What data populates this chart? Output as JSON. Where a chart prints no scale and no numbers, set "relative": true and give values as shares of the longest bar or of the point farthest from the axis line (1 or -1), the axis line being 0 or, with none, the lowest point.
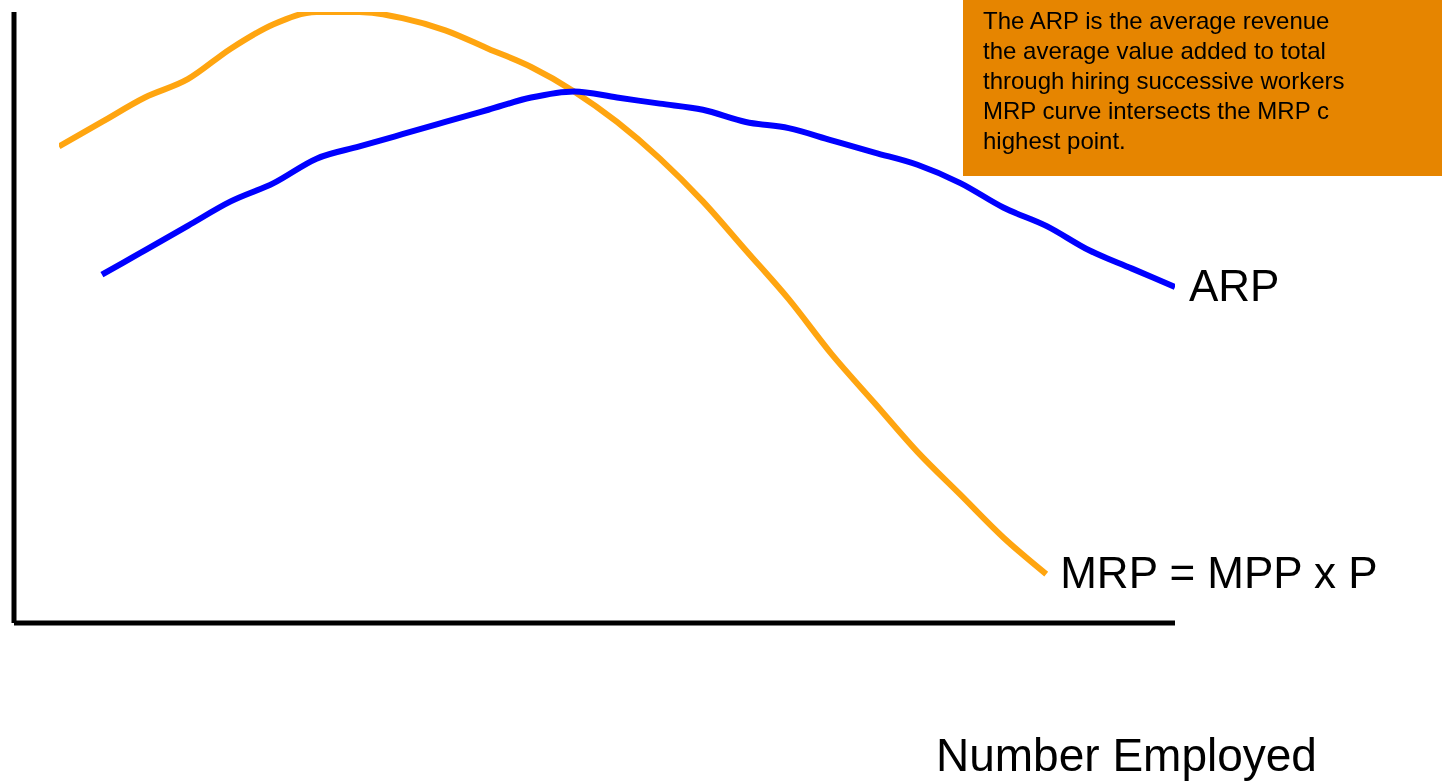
{
  "chart_data": {
    "type": "line",
    "relative": true,
    "xlabel": "Number Employed",
    "annotations": [
      "The ARP is the average revenue\nthe average value added to total\nthrough hiring successive workers\nMRP curve intersects the MRP c\nhighest point."
    ],
    "categories": [
      null,
      null,
      null,
      null,
      null,
      null,
      null,
      null,
      null,
      null,
      null,
      null,
      null,
      null,
      null,
      null,
      null,
      null,
      null,
      null,
      null,
      null,
      null,
      null,
      null,
      null,
      null
    ],
    "series": [
      {
        "name": "MRP = MPP x P",
        "color": "#ffa510",
        "values": [
          0.78,
          0.82,
          0.86,
          0.89,
          0.94,
          0.98,
          1.0,
          1.0,
          0.99,
          0.97,
          0.94,
          0.91,
          0.87,
          0.82,
          0.76,
          0.69,
          0.61,
          0.53,
          0.44,
          0.36,
          0.28,
          0.21,
          0.14,
          0.08,
          null,
          null,
          null
        ]
      },
      {
        "name": "ARP",
        "color": "#0000ff",
        "values": [
          null,
          0.57,
          0.61,
          0.65,
          0.69,
          0.72,
          0.76,
          0.78,
          0.8,
          0.82,
          0.84,
          0.86,
          0.87,
          0.86,
          0.85,
          0.84,
          0.82,
          0.81,
          0.79,
          0.77,
          0.75,
          0.72,
          0.68,
          0.65,
          0.61,
          0.58,
          0.55
        ]
      }
    ],
    "grid": false,
    "legend": false,
    "marker": "none",
    "line_style": "solid"
  }
}
